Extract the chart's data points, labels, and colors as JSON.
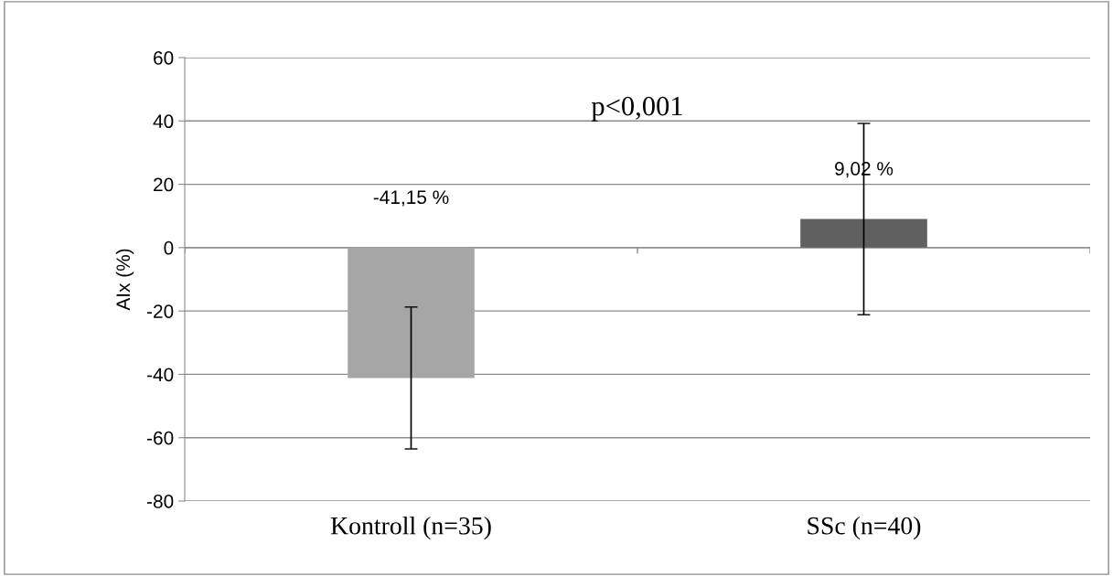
{
  "chart_data": {
    "type": "bar",
    "ylabel": "AIx (%)",
    "categories": [
      "Kontroll (n=35)",
      "SSc (n=40)"
    ],
    "values": [
      -41.15,
      9.02
    ],
    "colors": [
      "#a6a6a6",
      "#606060"
    ],
    "errors": [
      22.4,
      30.2
    ],
    "value_labels": [
      "-41,15 %",
      "9,02 %"
    ],
    "ylim": [
      -80,
      60
    ],
    "yticks": [
      -80,
      -60,
      -40,
      -20,
      0,
      20,
      40,
      60
    ],
    "grid": "y",
    "annotations": [
      "p<0,001"
    ]
  }
}
